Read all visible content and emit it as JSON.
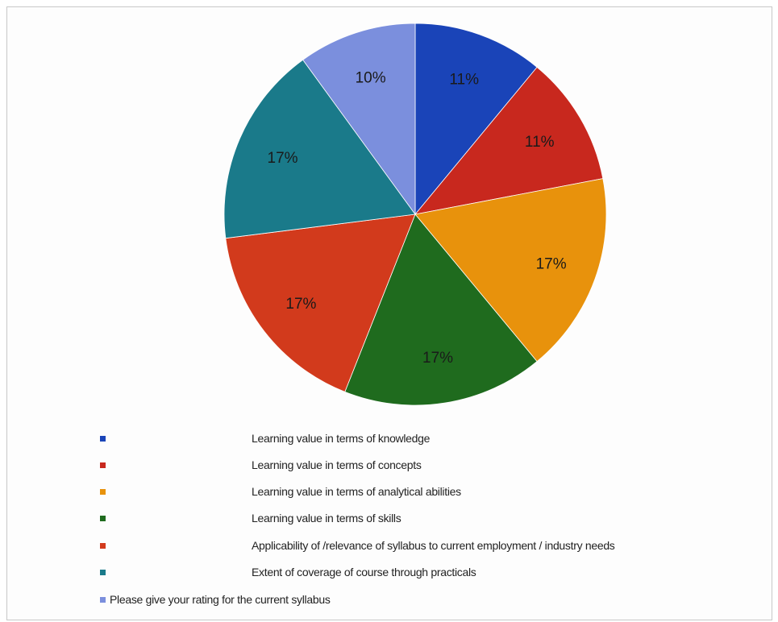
{
  "chart_data": {
    "type": "pie",
    "title": "",
    "slices": [
      {
        "label": "Learning value in terms of knowledge",
        "value": 11,
        "display": "11%",
        "color": "#1a44b8"
      },
      {
        "label": "Learning value in terms of concepts",
        "value": 11,
        "display": "11%",
        "color": "#c8281e"
      },
      {
        "label": "Learning value in terms of analytical abilities",
        "value": 17,
        "display": "17%",
        "color": "#e8920c"
      },
      {
        "label": "Learning value in terms of skills",
        "value": 17,
        "display": "17%",
        "color": "#1f6b1e"
      },
      {
        "label": "Applicability of /relevance of syllabus to current employment / industry needs",
        "value": 17,
        "display": "17%",
        "color": "#d23a1c"
      },
      {
        "label": "Extent of coverage of course through practicals",
        "value": 17,
        "display": "17%",
        "color": "#1a7a8a"
      },
      {
        "label": "Please give your rating for the current syllabus",
        "value": 10,
        "display": "10%",
        "color": "#7b8fdd"
      }
    ],
    "legend_position": "bottom",
    "start_angle": "12 o'clock",
    "direction": "clockwise"
  }
}
